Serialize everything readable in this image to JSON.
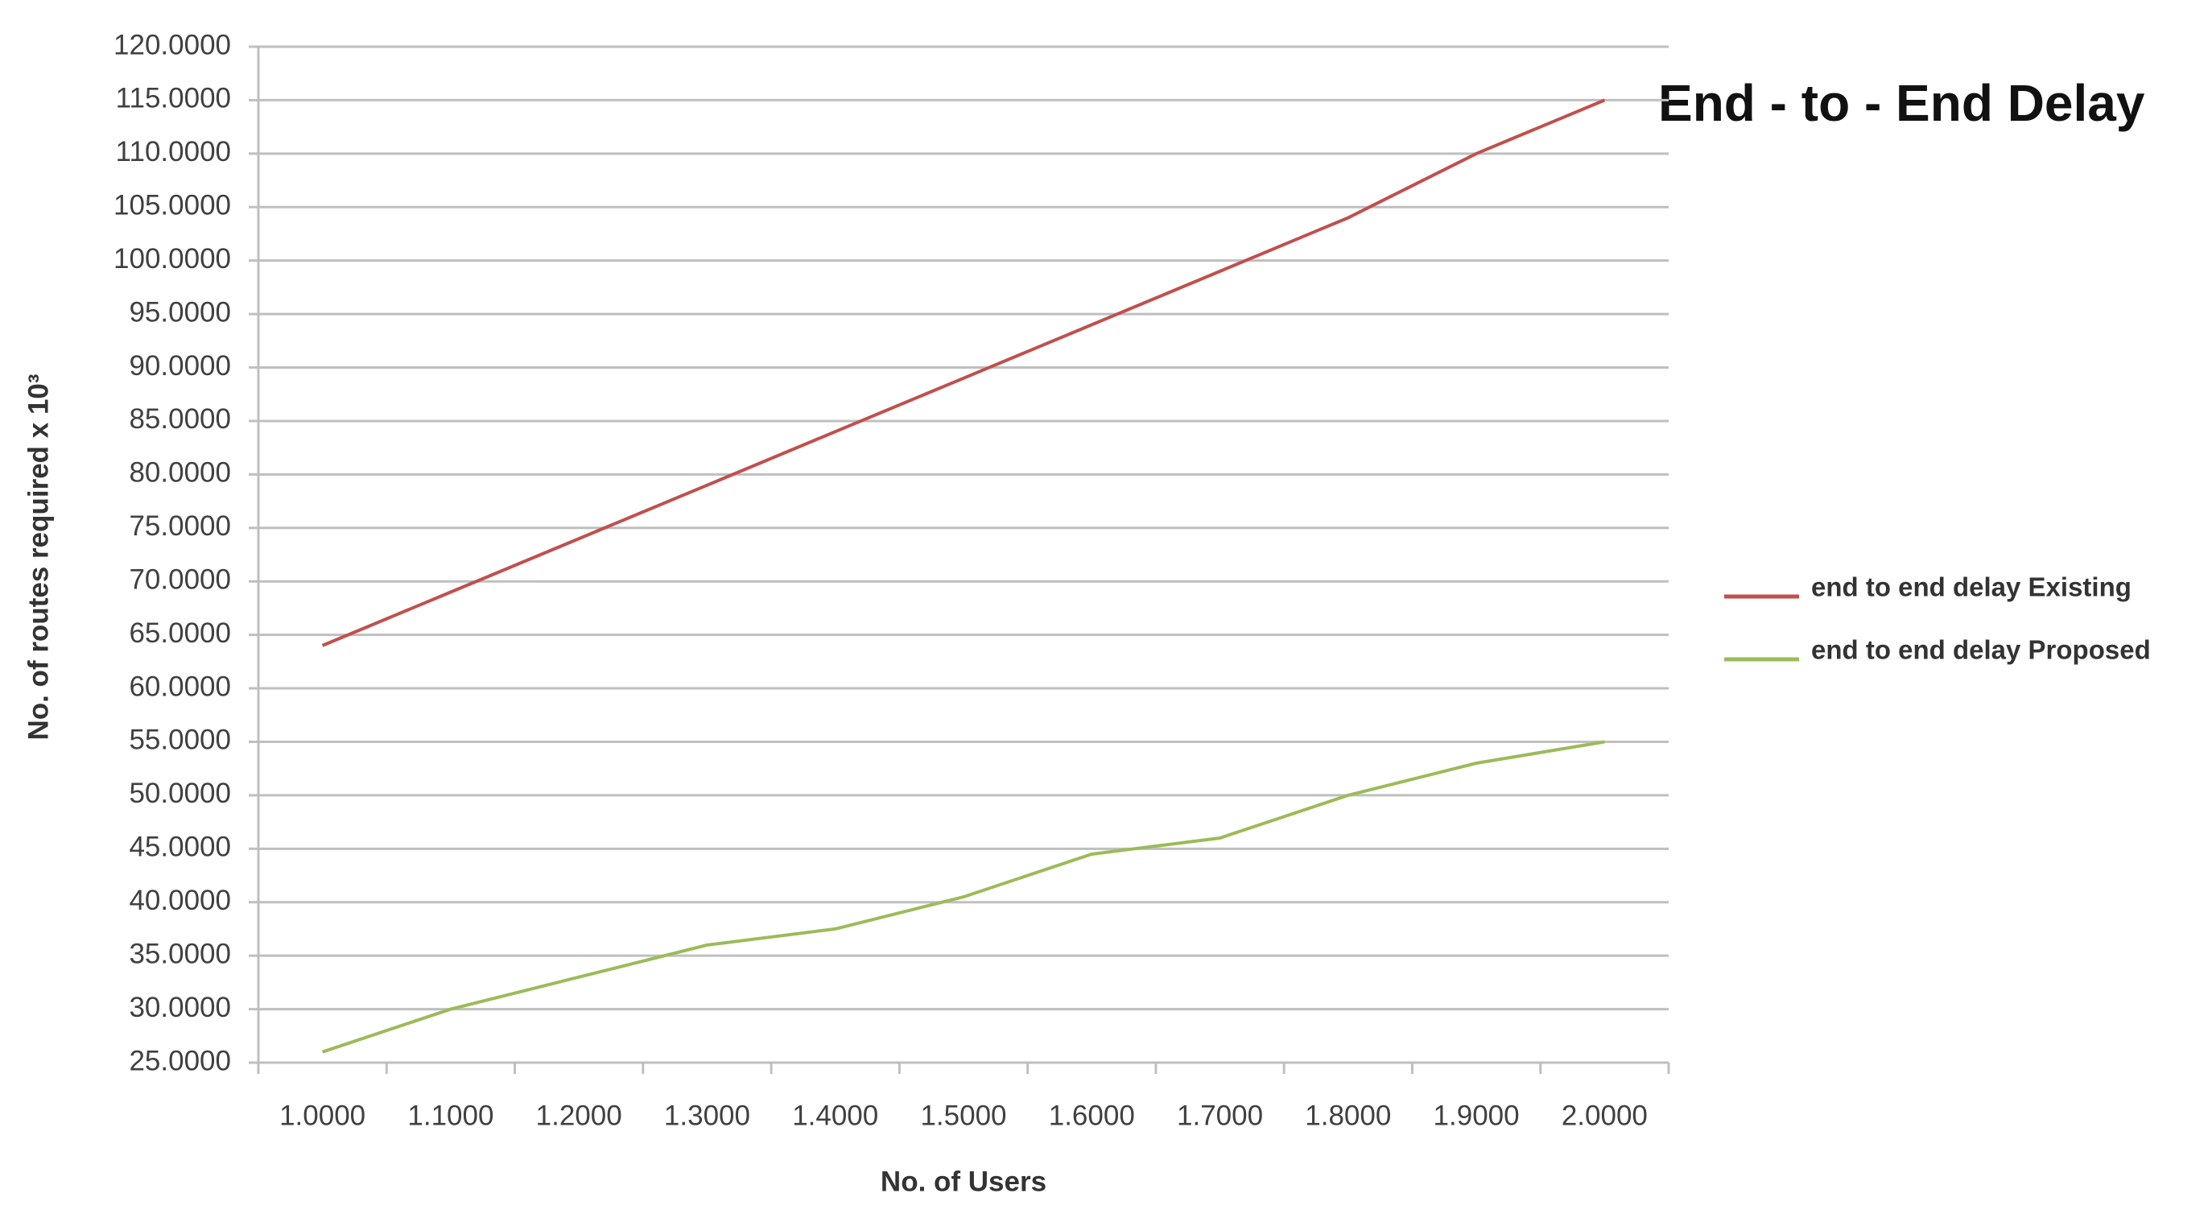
{
  "chart_data": {
    "type": "line",
    "title": "End - to - End Delay",
    "x_label": "No. of Users",
    "y_label": "No. of routes required x 10³",
    "categories": [
      "1.0000",
      "1.1000",
      "1.2000",
      "1.3000",
      "1.4000",
      "1.5000",
      "1.6000",
      "1.7000",
      "1.8000",
      "1.9000",
      "2.0000"
    ],
    "series": [
      {
        "name": "end to end delay Existing",
        "color": "#c0504d",
        "values": [
          64,
          69,
          74,
          79,
          84,
          89,
          94,
          99,
          104,
          110,
          115
        ]
      },
      {
        "name": "end to end delay Proposed",
        "color": "#9bbb59",
        "values": [
          26,
          30,
          33,
          36,
          37.5,
          40.5,
          44.5,
          46,
          50,
          53,
          55
        ]
      }
    ],
    "ylim": [
      25,
      120
    ],
    "yticks": [
      {
        "value": 25,
        "label": "25.0000"
      },
      {
        "value": 30,
        "label": "30.0000"
      },
      {
        "value": 35,
        "label": "35.0000"
      },
      {
        "value": 40,
        "label": "40.0000"
      },
      {
        "value": 45,
        "label": "45.0000"
      },
      {
        "value": 50,
        "label": "50.0000"
      },
      {
        "value": 55,
        "label": "55.0000"
      },
      {
        "value": 60,
        "label": "60.0000"
      },
      {
        "value": 65,
        "label": "65.0000"
      },
      {
        "value": 70,
        "label": "70.0000"
      },
      {
        "value": 75,
        "label": "75.0000"
      },
      {
        "value": 80,
        "label": "80.0000"
      },
      {
        "value": 85,
        "label": "85.0000"
      },
      {
        "value": 90,
        "label": "90.0000"
      },
      {
        "value": 95,
        "label": "95.0000"
      },
      {
        "value": 100,
        "label": "100.0000"
      },
      {
        "value": 105,
        "label": "105.0000"
      },
      {
        "value": 110,
        "label": "110.0000"
      },
      {
        "value": 115,
        "label": "115.0000"
      },
      {
        "value": 120,
        "label": "120.0000"
      }
    ],
    "grid": true,
    "legend": "right"
  }
}
